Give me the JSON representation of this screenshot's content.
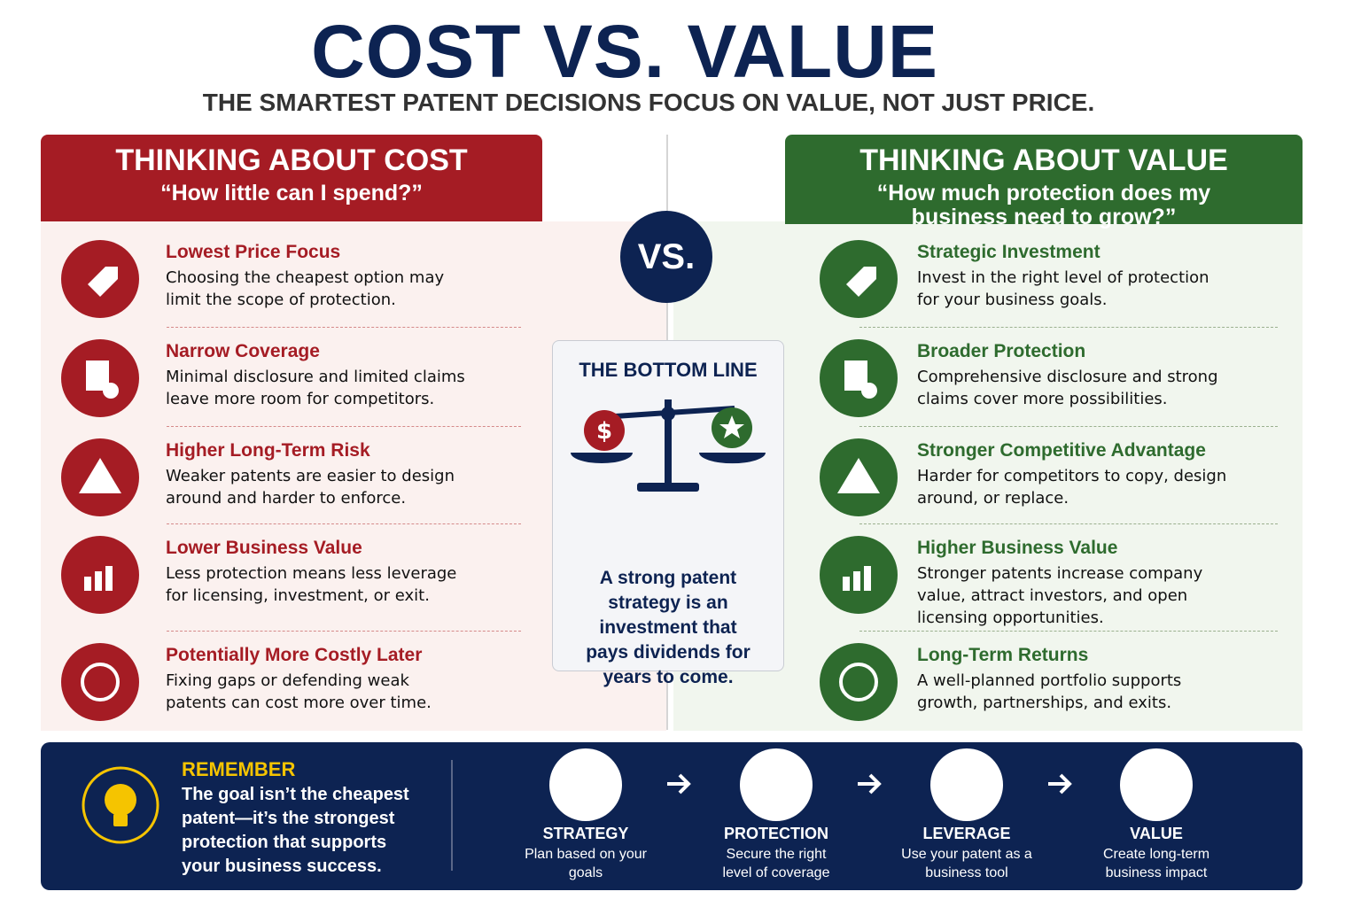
{
  "header": {
    "title": "COST VS. VALUE",
    "subtitle": "THE SMARTEST PATENT DECISIONS FOCUS ON VALUE, NOT JUST PRICE."
  },
  "cost": {
    "heading": "THINKING ABOUT COST",
    "question": "“How little can I spend?”",
    "items": [
      {
        "title": "Lowest Price Focus",
        "text": "Choosing the cheapest option may limit the scope of protection."
      },
      {
        "title": "Narrow Coverage",
        "text": "Minimal disclosure and limited claims leave more room for competitors."
      },
      {
        "title": "Higher Long-Term Risk",
        "text": "Weaker patents are easier to design around and harder to enforce."
      },
      {
        "title": "Lower Business Value",
        "text": "Less protection means less leverage for licensing, investment, or exit."
      },
      {
        "title": "Potentially More Costly Later",
        "text": "Fixing gaps or defending weak patents can cost more over time."
      }
    ]
  },
  "value": {
    "heading": "THINKING ABOUT VALUE",
    "question": "“How much protection does my business need to grow?”",
    "items": [
      {
        "title": "Strategic Investment",
        "text": "Invest in the right level of protection for your business goals."
      },
      {
        "title": "Broader Protection",
        "text": "Comprehensive disclosure and strong claims cover more possibilities."
      },
      {
        "title": "Stronger Competitive Advantage",
        "text": "Harder for competitors to copy, design around, or replace."
      },
      {
        "title": "Higher Business Value",
        "text": "Stronger patents increase company value, attract investors, and open licensing opportunities."
      },
      {
        "title": "Long-Term Returns",
        "text": "A well-planned portfolio supports growth, partnerships, and exits."
      }
    ]
  },
  "vs": "VS.",
  "bottom_line": {
    "title": "THE BOTTOM LINE",
    "text": "A strong patent strategy is an investment that pays dividends for years to come."
  },
  "remember": {
    "title": "REMEMBER",
    "text": "The goal isn’t the cheapest patent—it’s the strongest protection that supports your business success."
  },
  "steps": [
    {
      "title": "STRATEGY",
      "text": "Plan based on your goals"
    },
    {
      "title": "PROTECTION",
      "text": "Secure the right level of coverage"
    },
    {
      "title": "LEVERAGE",
      "text": "Use your patent as a business tool"
    },
    {
      "title": "VALUE",
      "text": "Create long-term business impact"
    }
  ]
}
